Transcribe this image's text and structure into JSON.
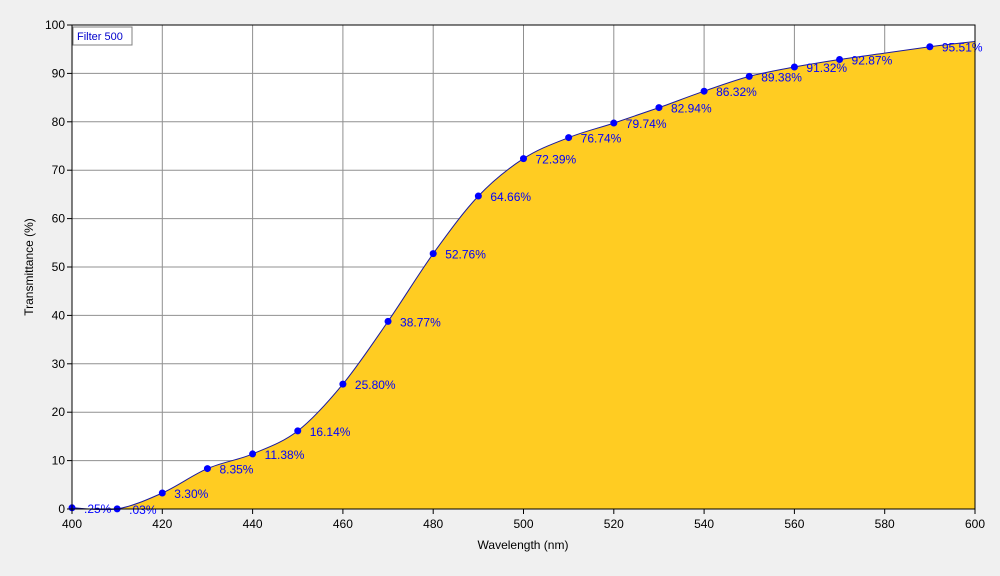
{
  "chart_data": {
    "type": "area",
    "legend": "Filter 500",
    "legend_position": "top-left",
    "xlabel": "Wavelength (nm)",
    "ylabel": "Transmittance (%)",
    "xlim": [
      400,
      600
    ],
    "ylim": [
      0,
      100
    ],
    "x_ticks": [
      400,
      420,
      440,
      460,
      480,
      500,
      520,
      540,
      560,
      580,
      600
    ],
    "y_ticks": [
      0,
      10,
      20,
      30,
      40,
      50,
      60,
      70,
      80,
      90,
      100
    ],
    "grid": true,
    "curve": {
      "x": [
        400,
        410,
        420,
        430,
        440,
        450,
        460,
        470,
        480,
        490,
        500,
        510,
        520,
        530,
        540,
        550,
        560,
        570,
        580,
        590,
        600
      ],
      "y": [
        0.25,
        0.03,
        3.3,
        8.35,
        11.38,
        16.14,
        25.8,
        38.77,
        52.76,
        64.66,
        72.39,
        76.74,
        79.74,
        82.94,
        86.32,
        89.38,
        91.32,
        92.87,
        94.2,
        95.51,
        96.6
      ]
    },
    "points": [
      {
        "x": 400,
        "y": 0.25,
        "label": ".25%"
      },
      {
        "x": 410,
        "y": 0.03,
        "label": ".03%"
      },
      {
        "x": 420,
        "y": 3.3,
        "label": "3.30%"
      },
      {
        "x": 430,
        "y": 8.35,
        "label": "8.35%"
      },
      {
        "x": 440,
        "y": 11.38,
        "label": "11.38%"
      },
      {
        "x": 450,
        "y": 16.14,
        "label": "16.14%"
      },
      {
        "x": 460,
        "y": 25.8,
        "label": "25.80%"
      },
      {
        "x": 470,
        "y": 38.77,
        "label": "38.77%"
      },
      {
        "x": 480,
        "y": 52.76,
        "label": "52.76%"
      },
      {
        "x": 490,
        "y": 64.66,
        "label": "64.66%"
      },
      {
        "x": 500,
        "y": 72.39,
        "label": "72.39%"
      },
      {
        "x": 510,
        "y": 76.74,
        "label": "76.74%"
      },
      {
        "x": 520,
        "y": 79.74,
        "label": "79.74%"
      },
      {
        "x": 530,
        "y": 82.94,
        "label": "82.94%"
      },
      {
        "x": 540,
        "y": 86.32,
        "label": "86.32%"
      },
      {
        "x": 550,
        "y": 89.38,
        "label": "89.38%"
      },
      {
        "x": 560,
        "y": 91.32,
        "label": "91.32%"
      },
      {
        "x": 570,
        "y": 92.87,
        "label": "92.87%"
      },
      {
        "x": 590,
        "y": 95.51,
        "label": "95.51%"
      }
    ],
    "colors": {
      "fill": "#ffcc22",
      "line": "#1a1aa0",
      "marker": "#0000ff",
      "label": "#0000ff",
      "plot_background": "#ffffff",
      "grid": "#909090"
    }
  }
}
